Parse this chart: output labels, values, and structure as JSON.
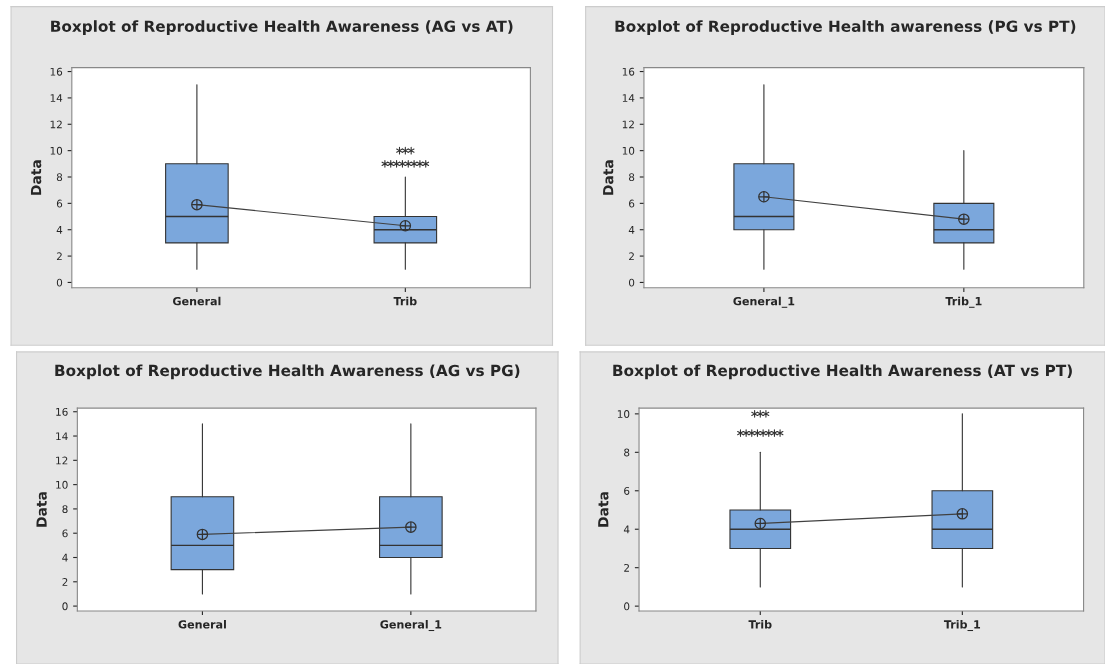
{
  "chart_data": [
    {
      "type": "box",
      "title": "Boxplot of Reproductive Health Awareness (AG vs AT)",
      "ylabel": "Data",
      "categories": [
        "General",
        "Trib"
      ],
      "ylim": [
        -0.4,
        16.3
      ],
      "yticks": [
        0,
        2,
        4,
        6,
        8,
        10,
        12,
        14,
        16
      ],
      "grid": false,
      "color": "#7ba7dc",
      "boxes": [
        {
          "low": 1,
          "q1": 3,
          "median": 5,
          "q3": 9,
          "high": 15,
          "mean": 5.9
        },
        {
          "low": 1,
          "q1": 3,
          "median": 4,
          "q3": 5,
          "high": 8,
          "mean": 4.3,
          "outliers": [
            9,
            9,
            9,
            9,
            9,
            9,
            9,
            9,
            10,
            10,
            10
          ]
        }
      ],
      "series": [
        {
          "type": "line",
          "values": [
            5.9,
            4.3
          ],
          "color": "#404040"
        }
      ]
    },
    {
      "type": "box",
      "title": "Boxplot of Reproductive Health awareness (PG vs PT)",
      "ylabel": "Data",
      "categories": [
        "General_1",
        "Trib_1"
      ],
      "ylim": [
        -0.4,
        16.3
      ],
      "yticks": [
        0,
        2,
        4,
        6,
        8,
        10,
        12,
        14,
        16
      ],
      "grid": false,
      "color": "#7ba7dc",
      "boxes": [
        {
          "low": 1,
          "q1": 4,
          "median": 5,
          "q3": 9,
          "high": 15,
          "mean": 6.5
        },
        {
          "low": 1,
          "q1": 3,
          "median": 4,
          "q3": 6,
          "high": 10,
          "mean": 4.8
        }
      ],
      "series": [
        {
          "type": "line",
          "values": [
            6.5,
            4.8
          ],
          "color": "#404040"
        }
      ]
    },
    {
      "type": "box",
      "title": "Boxplot of Reproductive Health Awareness (AG vs PG)",
      "ylabel": "Data",
      "categories": [
        "General",
        "General_1"
      ],
      "ylim": [
        -0.4,
        16.3
      ],
      "yticks": [
        0,
        2,
        4,
        6,
        8,
        10,
        12,
        14,
        16
      ],
      "grid": false,
      "color": "#7ba7dc",
      "boxes": [
        {
          "low": 1,
          "q1": 3,
          "median": 5,
          "q3": 9,
          "high": 15,
          "mean": 5.9
        },
        {
          "low": 1,
          "q1": 4,
          "median": 5,
          "q3": 9,
          "high": 15,
          "mean": 6.5
        }
      ],
      "series": [
        {
          "type": "line",
          "values": [
            5.9,
            6.5
          ],
          "color": "#404040"
        }
      ]
    },
    {
      "type": "box",
      "title": "Boxplot of Reproductive Health Awareness (AT vs PT)",
      "ylabel": "Data",
      "categories": [
        "Trib",
        "Trib_1"
      ],
      "ylim": [
        -0.25,
        10.3
      ],
      "yticks": [
        0,
        2,
        4,
        6,
        8,
        10
      ],
      "grid": false,
      "color": "#7ba7dc",
      "boxes": [
        {
          "low": 1,
          "q1": 3,
          "median": 4,
          "q3": 5,
          "high": 8,
          "mean": 4.3,
          "outliers": [
            9,
            9,
            9,
            9,
            9,
            9,
            9,
            9,
            10,
            10,
            10
          ]
        },
        {
          "low": 1,
          "q1": 3,
          "median": 4,
          "q3": 6,
          "high": 10,
          "mean": 4.8
        }
      ],
      "series": [
        {
          "type": "line",
          "values": [
            4.3,
            4.8
          ],
          "color": "#404040"
        }
      ]
    }
  ]
}
